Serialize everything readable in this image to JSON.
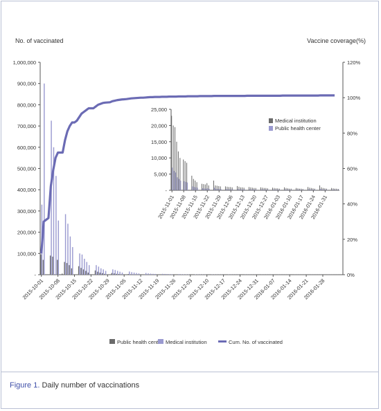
{
  "figure_label": "Figure 1.",
  "figure_caption": "Daily number of vaccinations",
  "chart_data": [
    {
      "type": "bar",
      "title": "",
      "ylabel": "No. of vaccinated",
      "y2label": "Vaccine coverage(%)",
      "ylim": [
        0,
        1000000
      ],
      "y2lim": [
        0,
        120
      ],
      "yticks": [
        0,
        100000,
        200000,
        300000,
        400000,
        500000,
        600000,
        700000,
        800000,
        900000,
        1000000
      ],
      "ytick_labels": [
        "-",
        "100,000",
        "200,000",
        "300,000",
        "400,000",
        "500,000",
        "600,000",
        "700,000",
        "800,000",
        "900,000",
        "1,000,000"
      ],
      "y2ticks": [
        0,
        20,
        40,
        60,
        80,
        100,
        120
      ],
      "y2tick_labels": [
        "0%",
        "20%",
        "40%",
        "60%",
        "80%",
        "100%",
        "120%"
      ],
      "x_start": "2015-10-01",
      "xtick_labels": [
        "2015-10-01",
        "2015-10-08",
        "2015-10-15",
        "2015-10-22",
        "2015-10-29",
        "2015-11-05",
        "2015-11-12",
        "2015-11-19",
        "2015-11-26",
        "2015-12-03",
        "2015-12-10",
        "2015-12-17",
        "2015-12-24",
        "2015-12-31",
        "2016-01-07",
        "2016-01-14",
        "2016-01-21",
        "2016-01-28"
      ],
      "legend_position": "bottom",
      "grid": false,
      "series": [
        {
          "name": "Public health center",
          "kind": "bar",
          "axis": "left",
          "color": "#6b6b6b",
          "values": [
            95000,
            70000,
            0,
            0,
            90000,
            85000,
            0,
            70000,
            0,
            5000,
            60000,
            55000,
            45000,
            30000,
            0,
            0,
            40000,
            32000,
            25000,
            18000,
            10000,
            0,
            0,
            20000,
            14000,
            10000,
            7000,
            4000,
            0,
            0,
            8000,
            6000,
            4000,
            3000,
            2000,
            0,
            0,
            3000,
            2000,
            1500,
            1000,
            800,
            0,
            0,
            1200,
            1000,
            800,
            600,
            500,
            0,
            0,
            800,
            600,
            500,
            400,
            300,
            0,
            0,
            500,
            400,
            300,
            200,
            150,
            0,
            0,
            300,
            200,
            150,
            100,
            100,
            0,
            0,
            200,
            150,
            100,
            100,
            80,
            0,
            0,
            150,
            100,
            80,
            60,
            50,
            0,
            0,
            100,
            80,
            60,
            50,
            40,
            0,
            0,
            80,
            60,
            50,
            40,
            30,
            0,
            0,
            60,
            50,
            40,
            30,
            30,
            0,
            0,
            50,
            40,
            30,
            30,
            20,
            0,
            0,
            40,
            30,
            30,
            20,
            20,
            0,
            0,
            30,
            30,
            20,
            20,
            20,
            0,
            0
          ]
        },
        {
          "name": "Medical institution",
          "kind": "bar",
          "axis": "left",
          "color": "#9a9ad0",
          "values": [
            330000,
            900000,
            0,
            0,
            725000,
            600000,
            465000,
            255000,
            0,
            0,
            285000,
            240000,
            180000,
            130000,
            0,
            0,
            100000,
            95000,
            75000,
            60000,
            45000,
            0,
            0,
            45000,
            38000,
            30000,
            25000,
            18000,
            0,
            0,
            25000,
            22000,
            18000,
            14000,
            10000,
            0,
            0,
            15000,
            12000,
            10000,
            8000,
            6000,
            0,
            0,
            8000,
            6000,
            5000,
            4000,
            3500,
            0,
            0,
            4000,
            3500,
            3000,
            2500,
            2000,
            0,
            0,
            2500,
            2000,
            1800,
            1500,
            1200,
            0,
            0,
            1500,
            1200,
            1000,
            900,
            800,
            0,
            0,
            1000,
            900,
            800,
            700,
            600,
            0,
            0,
            800,
            700,
            600,
            500,
            500,
            0,
            0,
            600,
            500,
            500,
            400,
            400,
            0,
            0,
            500,
            400,
            400,
            300,
            300,
            0,
            0,
            400,
            350,
            300,
            300,
            250,
            0,
            0,
            350,
            300,
            250,
            250,
            200,
            0,
            0,
            300,
            250,
            200,
            200,
            200,
            0,
            0,
            250,
            200,
            200,
            150,
            150,
            0,
            0
          ]
        },
        {
          "name": "Cum. No. of vaccinated",
          "kind": "line",
          "axis": "right",
          "color": "#6b6bb4",
          "values": [
            12,
            30,
            31,
            32,
            50,
            59,
            66,
            69,
            69,
            69,
            76,
            81,
            84,
            86,
            86,
            87,
            89,
            91,
            92,
            93,
            94,
            94,
            94,
            95,
            96,
            96.5,
            97,
            97.2,
            97.3,
            97.4,
            98,
            98.3,
            98.6,
            98.8,
            99,
            99.1,
            99.2,
            99.4,
            99.6,
            99.7,
            99.8,
            99.9,
            100,
            100,
            100.1,
            100.2,
            100.3,
            100.3,
            100.4,
            100.4,
            100.4,
            100.5,
            100.5,
            100.5,
            100.6,
            100.6,
            100.6,
            100.6,
            100.7,
            100.7,
            100.7,
            100.7,
            100.8,
            100.8,
            100.8,
            100.8,
            100.8,
            100.9,
            100.9,
            100.9,
            100.9,
            100.9,
            100.9,
            101,
            101,
            101,
            101,
            101,
            101,
            101,
            101,
            101,
            101,
            101,
            101,
            101,
            101,
            101.1,
            101.1,
            101.1,
            101.1,
            101.1,
            101.1,
            101.1,
            101.1,
            101.1,
            101.1,
            101.1,
            101.1,
            101.1,
            101.1,
            101.1,
            101.2,
            101.2,
            101.2,
            101.2,
            101.2,
            101.2,
            101.2,
            101.2,
            101.2,
            101.2,
            101.2,
            101.2,
            101.2,
            101.2,
            101.2,
            101.2,
            101.3,
            101.3,
            101.3,
            101.3,
            101.3,
            101.3,
            101.3
          ]
        }
      ]
    },
    {
      "type": "bar",
      "title": "",
      "ylim": [
        0,
        25000
      ],
      "yticks": [
        0,
        5000,
        10000,
        15000,
        20000,
        25000
      ],
      "ytick_labels": [
        "-",
        "5,000",
        "10,000",
        "15,000",
        "20,000",
        "25,000"
      ],
      "x_start": "2015-11-01",
      "xtick_labels": [
        "2015-11-01",
        "2015-11-08",
        "2015-11-15",
        "2015-11-22",
        "2015-11-29",
        "2015-12-06",
        "2015-12-13",
        "2015-12-20",
        "2015-12-27",
        "2016-01-03",
        "2016-01-10",
        "2016-01-17",
        "2016-01-24",
        "2016-01-31"
      ],
      "legend_position": "top-right",
      "series": [
        {
          "name": "Medical institution",
          "color": "#6b6b6b",
          "values": [
            23000,
            20000,
            19500,
            15000,
            12000,
            10000,
            0,
            9500,
            9000,
            8500,
            0,
            0,
            4500,
            3500,
            3000,
            2500,
            0,
            0,
            2000,
            1900,
            1800,
            2200,
            1500,
            0,
            0,
            3000,
            1500,
            1400,
            1300,
            1200,
            0,
            0,
            1200,
            1100,
            1000,
            1000,
            900,
            0,
            0,
            1300,
            1100,
            900,
            900,
            800,
            0,
            0,
            1000,
            900,
            800,
            700,
            700,
            0,
            0,
            900,
            800,
            700,
            700,
            600,
            0,
            0,
            800,
            700,
            600,
            600,
            500,
            0,
            0,
            900,
            700,
            600,
            500,
            500,
            0,
            0,
            700,
            600,
            500,
            500,
            400,
            0,
            0,
            1000,
            800,
            700,
            600,
            500,
            0,
            0,
            1500,
            900,
            700,
            600,
            500,
            0,
            0,
            700,
            600,
            500,
            500,
            400
          ]
        },
        {
          "name": "Public health center",
          "color": "#9a9ad0",
          "values": [
            7000,
            6000,
            5500,
            4000,
            3500,
            3000,
            0,
            2800,
            2600,
            2400,
            0,
            0,
            1200,
            1000,
            900,
            800,
            0,
            0,
            600,
            550,
            500,
            600,
            450,
            0,
            0,
            800,
            450,
            400,
            400,
            350,
            0,
            0,
            350,
            300,
            300,
            300,
            250,
            0,
            0,
            350,
            300,
            250,
            250,
            250,
            0,
            0,
            300,
            250,
            250,
            200,
            200,
            0,
            0,
            250,
            250,
            200,
            200,
            200,
            0,
            0,
            250,
            200,
            200,
            200,
            150,
            0,
            0,
            250,
            200,
            200,
            150,
            150,
            0,
            0,
            200,
            200,
            150,
            150,
            150,
            0,
            0,
            300,
            250,
            200,
            200,
            150,
            0,
            0,
            400,
            250,
            200,
            200,
            150,
            0,
            0,
            200,
            200,
            150,
            150,
            150
          ]
        }
      ]
    }
  ]
}
